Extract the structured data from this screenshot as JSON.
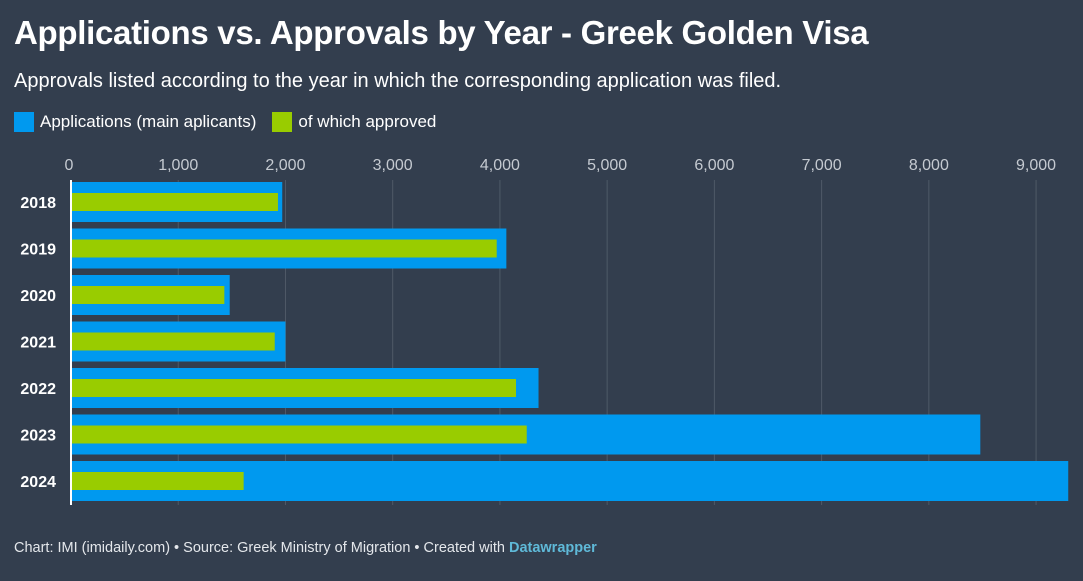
{
  "title": "Applications vs. Approvals by Year - Greek Golden Visa",
  "subtitle": "Approvals listed according to the year in which the corresponding application was filed.",
  "legend": {
    "applications": "Applications (main aplicants)",
    "approved": "of which approved"
  },
  "footer": {
    "prefix": "Chart: IMI (imidaily.com) • Source: Greek Ministry of Migration • Created with ",
    "link": "Datawrapper"
  },
  "colors": {
    "background": "#333e4e",
    "applications": "#0099ef",
    "approved": "#99cc00",
    "grid": "#4f5a68"
  },
  "chart_data": {
    "type": "bar",
    "orientation": "horizontal",
    "categories": [
      "2018",
      "2019",
      "2020",
      "2021",
      "2022",
      "2023",
      "2024"
    ],
    "series": [
      {
        "name": "Applications (main aplicants)",
        "values": [
          1970,
          4060,
          1480,
          2000,
          4360,
          8480,
          9300
        ]
      },
      {
        "name": "of which approved",
        "values": [
          1930,
          3970,
          1430,
          1900,
          4150,
          4250,
          1610
        ]
      }
    ],
    "ticks": [
      "0",
      "1,000",
      "2,000",
      "3,000",
      "4,000",
      "5,000",
      "6,000",
      "7,000",
      "8,000",
      "9,000"
    ],
    "xlim": [
      0,
      9300
    ],
    "grid": true,
    "legend_position": "top-left"
  }
}
